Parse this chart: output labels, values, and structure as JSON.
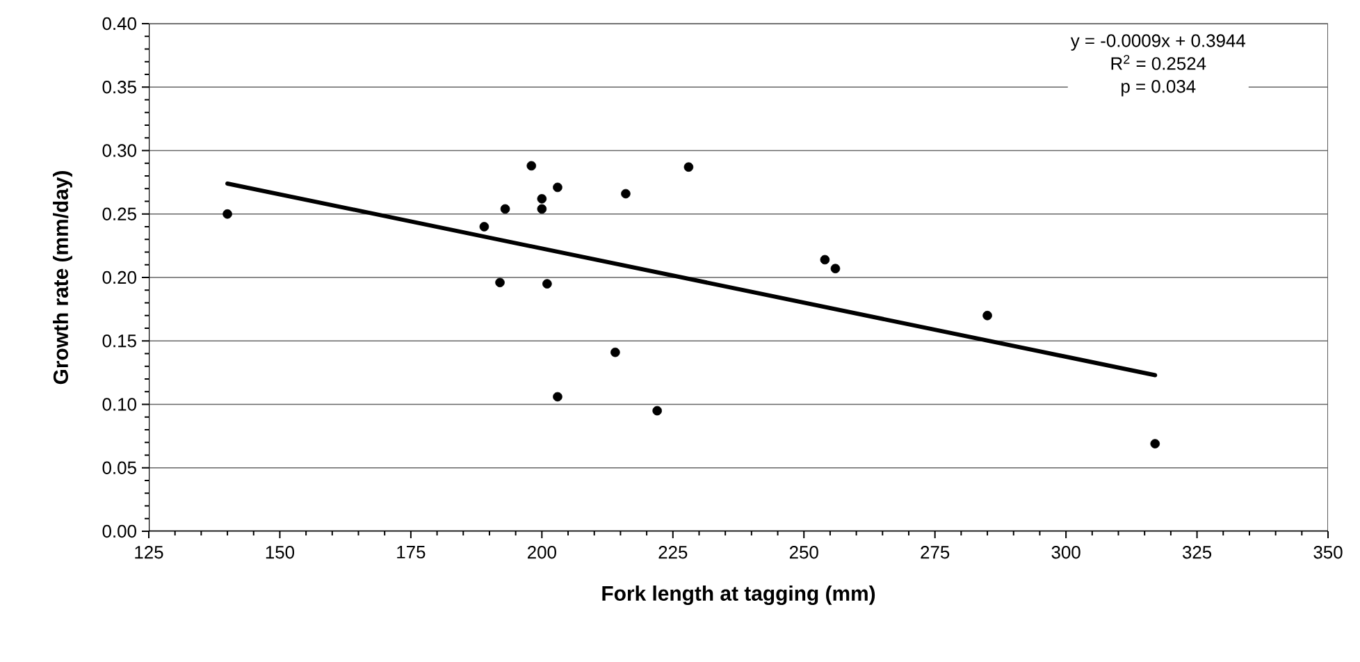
{
  "chart_data": {
    "type": "scatter",
    "xlabel": "Fork length at tagging (mm)",
    "ylabel": "Growth rate (mm/day)",
    "xlim": [
      125,
      350
    ],
    "xticks": [
      125,
      150,
      175,
      200,
      225,
      250,
      275,
      300,
      325,
      350
    ],
    "ylim": [
      0,
      0.4
    ],
    "yticks": [
      {
        "value": 0,
        "label": "0.00"
      },
      {
        "value": 0.05,
        "label": "0.05"
      },
      {
        "value": 0.1,
        "label": "0.10"
      },
      {
        "value": 0.15,
        "label": "0.15"
      },
      {
        "value": 0.2,
        "label": "0.20"
      },
      {
        "value": 0.25,
        "label": "0.25"
      },
      {
        "value": 0.3,
        "label": "0.30"
      },
      {
        "value": 0.35,
        "label": "0.35"
      },
      {
        "value": 0.4,
        "label": "0.40"
      }
    ],
    "grid": "y",
    "marker": "circle",
    "series": [
      {
        "type": "scatter",
        "color": "#000000",
        "x": [
          140,
          189,
          193,
          192,
          198,
          200,
          200,
          201,
          203,
          203,
          214,
          216,
          222,
          228,
          254,
          256,
          285,
          317
        ],
        "values": [
          0.25,
          0.24,
          0.254,
          0.196,
          0.288,
          0.262,
          0.254,
          0.195,
          0.271,
          0.106,
          0.141,
          0.266,
          0.095,
          0.287,
          0.214,
          0.207,
          0.17,
          0.069
        ]
      },
      {
        "type": "line",
        "color": "#000000",
        "marker": "none",
        "line_style": "solid",
        "x": [
          140,
          317
        ],
        "values": [
          0.274,
          0.123
        ]
      }
    ],
    "annotations": [
      "y = -0.0009x + 0.3944",
      "R$^{2}$ = 0.2524",
      "p = 0.034"
    ]
  }
}
